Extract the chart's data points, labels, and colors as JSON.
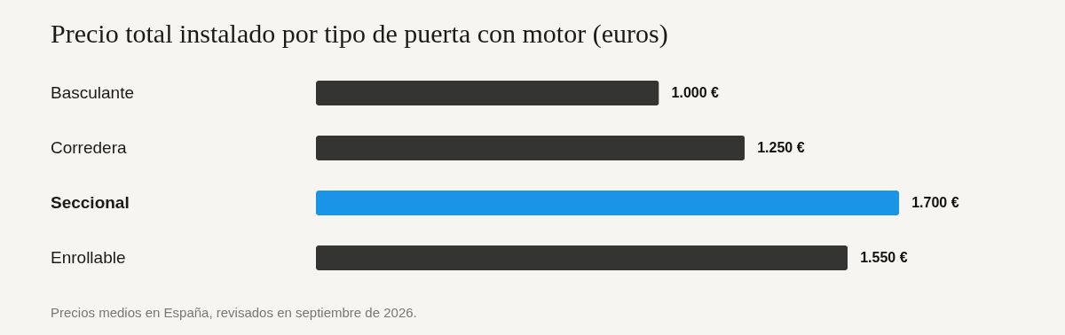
{
  "chart_data": {
    "type": "bar",
    "orientation": "horizontal",
    "title": "Precio total instalado por tipo de puerta con motor (euros)",
    "categories": [
      "Basculante",
      "Corredera",
      "Seccional",
      "Enrollable"
    ],
    "values": [
      1000,
      1250,
      1700,
      1550
    ],
    "colors": [
      "#343432",
      "#343432",
      "#1a94e6",
      "#343432"
    ],
    "value_labels": [
      "1.000 €",
      "1.250 €",
      "1.700 €",
      "1.550 €"
    ],
    "annotations": [
      "Precios medios en España, revisados en septiembre de 2026."
    ]
  }
}
